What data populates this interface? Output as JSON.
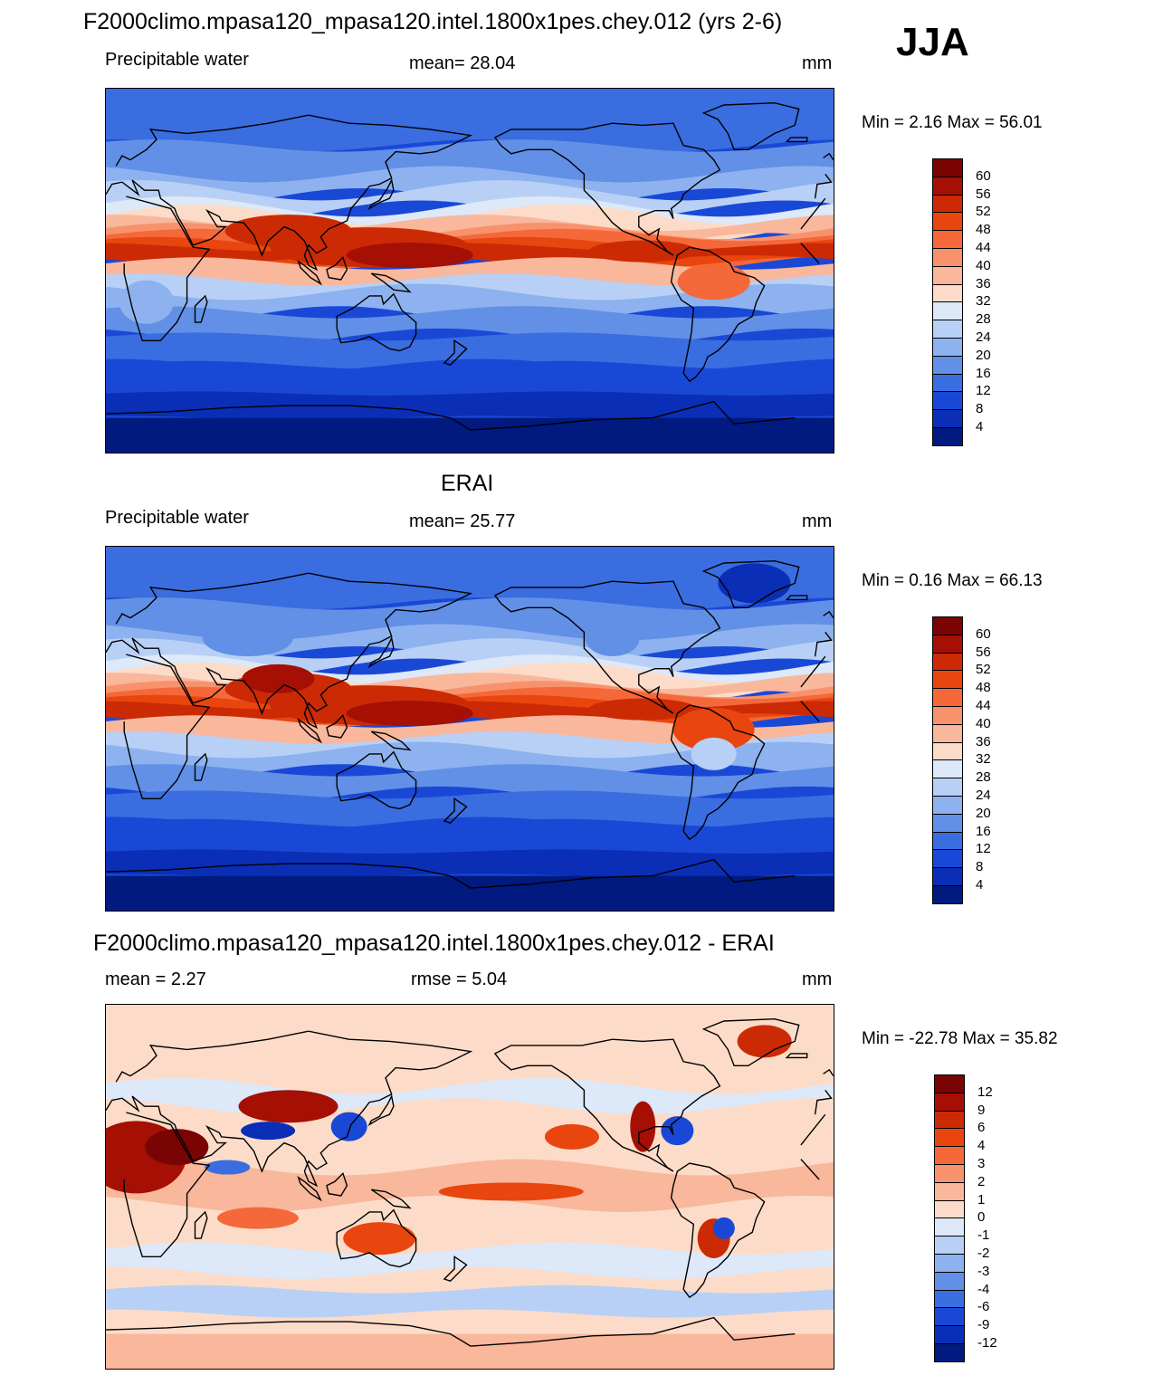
{
  "season": "JJA",
  "units": "mm",
  "panels": [
    {
      "title": "F2000climo.mpasa120_mpasa120.intel.1800x1pes.chey.012 (yrs 2-6)",
      "left_label": "Precipitable water",
      "stat_label": "mean=  28.04",
      "min_max": "Min =   2.16 Max =  56.01",
      "kind": "field"
    },
    {
      "title": "ERAI",
      "left_label": "Precipitable water",
      "stat_label": "mean=  25.77",
      "min_max": "Min =   0.16 Max =  66.13",
      "kind": "field"
    },
    {
      "title": "F2000climo.mpasa120_mpasa120.intel.1800x1pes.chey.012 - ERAI",
      "left_label": "mean =   2.27",
      "stat_label": "rmse =   5.04",
      "min_max": "Min = -22.78 Max =  35.82",
      "kind": "diff"
    }
  ],
  "colorbars": {
    "field": {
      "labels": [
        "60",
        "56",
        "52",
        "48",
        "44",
        "40",
        "36",
        "32",
        "28",
        "24",
        "20",
        "16",
        "12",
        "8",
        "4"
      ],
      "colors": [
        "#7a0403",
        "#a50f04",
        "#cc2a05",
        "#e8460e",
        "#f4683a",
        "#f7926d",
        "#f9b79c",
        "#fcdcc8",
        "#dde8f8",
        "#b8d0f5",
        "#8db2ef",
        "#6290e6",
        "#3a6de0",
        "#1a48d6",
        "#0a2eb5",
        "#001a80"
      ]
    },
    "diff": {
      "labels": [
        "12",
        "9",
        "6",
        "4",
        "3",
        "2",
        "1",
        "0",
        "-1",
        "-2",
        "-3",
        "-4",
        "-6",
        "-9",
        "-12"
      ],
      "colors": [
        "#7a0403",
        "#a50f04",
        "#cc2a05",
        "#e8460e",
        "#f4683a",
        "#f7926d",
        "#f9b79c",
        "#fcdcc8",
        "#dde8f8",
        "#b8d0f5",
        "#8db2ef",
        "#6290e6",
        "#3a6de0",
        "#1a48d6",
        "#0a2eb5",
        "#001a80"
      ]
    }
  }
}
